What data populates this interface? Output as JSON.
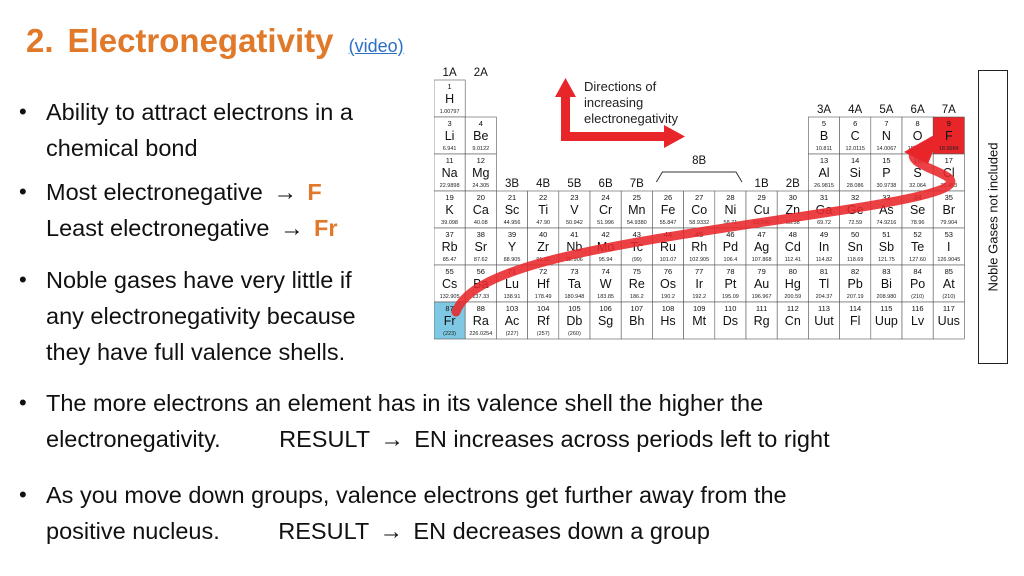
{
  "title": {
    "number": "2.",
    "text": "Electronegativity",
    "link": "(video)"
  },
  "bullets": {
    "b1": {
      "line1": "Ability to attract electrons in a",
      "line2": "chemical bond"
    },
    "b2": {
      "most": "Most electronegative",
      "most_el": "F",
      "least": "Least electronegative",
      "least_el": "Fr"
    },
    "b3": {
      "line1": "Noble gases have very little if",
      "line2": "any electronegativity because",
      "line3": "they have full valence shells."
    },
    "b4": {
      "line1": "The more electrons an element has in its valence shell the higher the",
      "line2a": "electronegativity.",
      "line2b": "RESULT",
      "line2c": "EN increases across periods left to right"
    },
    "b5": {
      "line1": "As you move down groups, valence electrons get further away from the",
      "line2a": "positive nucleus.",
      "line2b": "RESULT",
      "line2c": "EN decreases down a group"
    }
  },
  "arrow_glyph": "→",
  "periodic_table": {
    "direction_label": [
      "Directions of",
      "increasing",
      "electronegativity"
    ],
    "noble_note": "Noble Gases not included",
    "group_labels": [
      "1A",
      "2A",
      "3B",
      "4B",
      "5B",
      "6B",
      "7B",
      "8B",
      "1B",
      "2B",
      "3A",
      "4A",
      "5A",
      "6A",
      "7A"
    ],
    "colors": {
      "arrow_red": "#e8262a",
      "fr_highlight": "#7ec8e3",
      "f_highlight": "#e8262a",
      "accent_orange": "#e07a2a"
    },
    "cells": [
      {
        "n": "1",
        "s": "H",
        "m": "1.00797",
        "c": 1,
        "r": 1
      },
      {
        "n": "3",
        "s": "Li",
        "m": "6.941",
        "c": 1,
        "r": 2
      },
      {
        "n": "4",
        "s": "Be",
        "m": "9.0122",
        "c": 2,
        "r": 2
      },
      {
        "n": "5",
        "s": "B",
        "m": "10.811",
        "c": 13,
        "r": 2
      },
      {
        "n": "6",
        "s": "C",
        "m": "12.0115",
        "c": 14,
        "r": 2
      },
      {
        "n": "7",
        "s": "N",
        "m": "14.0067",
        "c": 15,
        "r": 2
      },
      {
        "n": "8",
        "s": "O",
        "m": "15.9994",
        "c": 16,
        "r": 2
      },
      {
        "n": "9",
        "s": "F",
        "m": "18.9984",
        "c": 17,
        "r": 2,
        "hl": "red"
      },
      {
        "n": "11",
        "s": "Na",
        "m": "22.9898",
        "c": 1,
        "r": 3
      },
      {
        "n": "12",
        "s": "Mg",
        "m": "24.305",
        "c": 2,
        "r": 3
      },
      {
        "n": "13",
        "s": "Al",
        "m": "26.9815",
        "c": 13,
        "r": 3
      },
      {
        "n": "14",
        "s": "Si",
        "m": "28.086",
        "c": 14,
        "r": 3
      },
      {
        "n": "15",
        "s": "P",
        "m": "30.9738",
        "c": 15,
        "r": 3
      },
      {
        "n": "16",
        "s": "S",
        "m": "32.064",
        "c": 16,
        "r": 3
      },
      {
        "n": "17",
        "s": "Cl",
        "m": "35.453",
        "c": 17,
        "r": 3
      },
      {
        "n": "19",
        "s": "K",
        "m": "39.098",
        "c": 1,
        "r": 4
      },
      {
        "n": "20",
        "s": "Ca",
        "m": "40.08",
        "c": 2,
        "r": 4
      },
      {
        "n": "21",
        "s": "Sc",
        "m": "44.956",
        "c": 3,
        "r": 4
      },
      {
        "n": "22",
        "s": "Ti",
        "m": "47.90",
        "c": 4,
        "r": 4
      },
      {
        "n": "23",
        "s": "V",
        "m": "50.942",
        "c": 5,
        "r": 4
      },
      {
        "n": "24",
        "s": "Cr",
        "m": "51.996",
        "c": 6,
        "r": 4
      },
      {
        "n": "25",
        "s": "Mn",
        "m": "54.9380",
        "c": 7,
        "r": 4
      },
      {
        "n": "26",
        "s": "Fe",
        "m": "55.847",
        "c": 8,
        "r": 4
      },
      {
        "n": "27",
        "s": "Co",
        "m": "58.9332",
        "c": 9,
        "r": 4
      },
      {
        "n": "28",
        "s": "Ni",
        "m": "58.71",
        "c": 10,
        "r": 4
      },
      {
        "n": "29",
        "s": "Cu",
        "m": "63.546",
        "c": 11,
        "r": 4
      },
      {
        "n": "30",
        "s": "Zn",
        "m": "65.38",
        "c": 12,
        "r": 4
      },
      {
        "n": "31",
        "s": "Ga",
        "m": "69.72",
        "c": 13,
        "r": 4
      },
      {
        "n": "32",
        "s": "Ge",
        "m": "72.59",
        "c": 14,
        "r": 4
      },
      {
        "n": "33",
        "s": "As",
        "m": "74.9216",
        "c": 15,
        "r": 4
      },
      {
        "n": "34",
        "s": "Se",
        "m": "78.96",
        "c": 16,
        "r": 4
      },
      {
        "n": "35",
        "s": "Br",
        "m": "79.904",
        "c": 17,
        "r": 4
      },
      {
        "n": "37",
        "s": "Rb",
        "m": "85.47",
        "c": 1,
        "r": 5
      },
      {
        "n": "38",
        "s": "Sr",
        "m": "87.62",
        "c": 2,
        "r": 5
      },
      {
        "n": "39",
        "s": "Y",
        "m": "88.905",
        "c": 3,
        "r": 5
      },
      {
        "n": "40",
        "s": "Zr",
        "m": "91.22",
        "c": 4,
        "r": 5
      },
      {
        "n": "41",
        "s": "Nb",
        "m": "92.906",
        "c": 5,
        "r": 5
      },
      {
        "n": "42",
        "s": "Mo",
        "m": "95.94",
        "c": 6,
        "r": 5
      },
      {
        "n": "43",
        "s": "Tc",
        "m": "(99)",
        "c": 7,
        "r": 5
      },
      {
        "n": "44",
        "s": "Ru",
        "m": "101.07",
        "c": 8,
        "r": 5
      },
      {
        "n": "45",
        "s": "Rh",
        "m": "102.905",
        "c": 9,
        "r": 5
      },
      {
        "n": "46",
        "s": "Pd",
        "m": "106.4",
        "c": 10,
        "r": 5
      },
      {
        "n": "47",
        "s": "Ag",
        "m": "107.868",
        "c": 11,
        "r": 5
      },
      {
        "n": "48",
        "s": "Cd",
        "m": "112.41",
        "c": 12,
        "r": 5
      },
      {
        "n": "49",
        "s": "In",
        "m": "114.82",
        "c": 13,
        "r": 5
      },
      {
        "n": "50",
        "s": "Sn",
        "m": "118.69",
        "c": 14,
        "r": 5
      },
      {
        "n": "51",
        "s": "Sb",
        "m": "121.75",
        "c": 15,
        "r": 5
      },
      {
        "n": "52",
        "s": "Te",
        "m": "127.60",
        "c": 16,
        "r": 5
      },
      {
        "n": "53",
        "s": "I",
        "m": "126.9045",
        "c": 17,
        "r": 5
      },
      {
        "n": "55",
        "s": "Cs",
        "m": "132.905",
        "c": 1,
        "r": 6
      },
      {
        "n": "56",
        "s": "Ba",
        "m": "137.33",
        "c": 2,
        "r": 6
      },
      {
        "n": "71",
        "s": "Lu",
        "m": "138.91",
        "c": 3,
        "r": 6
      },
      {
        "n": "72",
        "s": "Hf",
        "m": "178.49",
        "c": 4,
        "r": 6
      },
      {
        "n": "73",
        "s": "Ta",
        "m": "180.948",
        "c": 5,
        "r": 6
      },
      {
        "n": "74",
        "s": "W",
        "m": "183.85",
        "c": 6,
        "r": 6
      },
      {
        "n": "75",
        "s": "Re",
        "m": "186.2",
        "c": 7,
        "r": 6
      },
      {
        "n": "76",
        "s": "Os",
        "m": "190.2",
        "c": 8,
        "r": 6
      },
      {
        "n": "77",
        "s": "Ir",
        "m": "192.2",
        "c": 9,
        "r": 6
      },
      {
        "n": "78",
        "s": "Pt",
        "m": "195.09",
        "c": 10,
        "r": 6
      },
      {
        "n": "79",
        "s": "Au",
        "m": "196.967",
        "c": 11,
        "r": 6
      },
      {
        "n": "80",
        "s": "Hg",
        "m": "200.59",
        "c": 12,
        "r": 6
      },
      {
        "n": "81",
        "s": "Tl",
        "m": "204.37",
        "c": 13,
        "r": 6
      },
      {
        "n": "82",
        "s": "Pb",
        "m": "207.19",
        "c": 14,
        "r": 6
      },
      {
        "n": "83",
        "s": "Bi",
        "m": "208.980",
        "c": 15,
        "r": 6
      },
      {
        "n": "84",
        "s": "Po",
        "m": "(210)",
        "c": 16,
        "r": 6
      },
      {
        "n": "85",
        "s": "At",
        "m": "(210)",
        "c": 17,
        "r": 6
      },
      {
        "n": "87",
        "s": "Fr",
        "m": "(223)",
        "c": 1,
        "r": 7,
        "hl": "blue"
      },
      {
        "n": "88",
        "s": "Ra",
        "m": "226.0254",
        "c": 2,
        "r": 7
      },
      {
        "n": "103",
        "s": "Ac",
        "m": "(227)",
        "c": 3,
        "r": 7
      },
      {
        "n": "104",
        "s": "Rf",
        "m": "(257)",
        "c": 4,
        "r": 7
      },
      {
        "n": "105",
        "s": "Db",
        "m": "(260)",
        "c": 5,
        "r": 7
      },
      {
        "n": "106",
        "s": "Sg",
        "m": "",
        "c": 6,
        "r": 7
      },
      {
        "n": "107",
        "s": "Bh",
        "m": "",
        "c": 7,
        "r": 7
      },
      {
        "n": "108",
        "s": "Hs",
        "m": "",
        "c": 8,
        "r": 7
      },
      {
        "n": "109",
        "s": "Mt",
        "m": "",
        "c": 9,
        "r": 7
      },
      {
        "n": "110",
        "s": "Ds",
        "m": "",
        "c": 10,
        "r": 7
      },
      {
        "n": "111",
        "s": "Rg",
        "m": "",
        "c": 11,
        "r": 7
      },
      {
        "n": "112",
        "s": "Cn",
        "m": "",
        "c": 12,
        "r": 7
      },
      {
        "n": "113",
        "s": "Uut",
        "m": "",
        "c": 13,
        "r": 7
      },
      {
        "n": "114",
        "s": "Fl",
        "m": "",
        "c": 14,
        "r": 7
      },
      {
        "n": "115",
        "s": "Uup",
        "m": "",
        "c": 15,
        "r": 7
      },
      {
        "n": "116",
        "s": "Lv",
        "m": "",
        "c": 16,
        "r": 7
      },
      {
        "n": "117",
        "s": "Uus",
        "m": "",
        "c": 17,
        "r": 7
      }
    ]
  }
}
